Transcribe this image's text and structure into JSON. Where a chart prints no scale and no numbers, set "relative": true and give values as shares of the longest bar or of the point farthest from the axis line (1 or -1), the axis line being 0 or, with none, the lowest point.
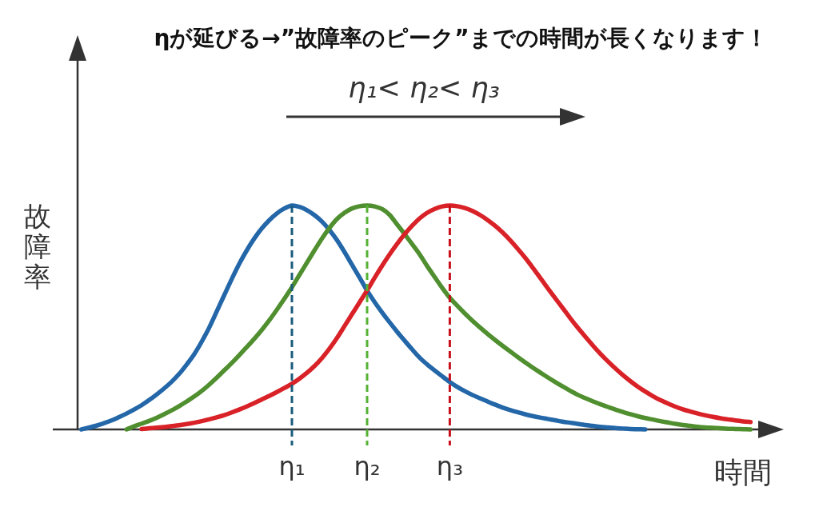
{
  "chart_data": {
    "type": "line",
    "title": "ηが延びる→”故障率のピーク”までの時間が長くなります！",
    "xlabel": "時間",
    "ylabel": "故障率",
    "relative": true,
    "categories": [
      null,
      null,
      null,
      null,
      null,
      null,
      null,
      null,
      null,
      null,
      null,
      null,
      null,
      null,
      null,
      null,
      null,
      null,
      null,
      null,
      null,
      null,
      null,
      null,
      null,
      null,
      null,
      null,
      "η₁",
      null,
      null,
      null,
      null,
      null,
      null,
      null,
      null,
      null,
      "η₂",
      null,
      null,
      null,
      null,
      null,
      null,
      null,
      null,
      null,
      null,
      "η₃",
      null,
      null,
      null,
      null,
      null,
      null,
      null,
      null,
      null,
      null,
      null,
      null,
      null,
      null,
      null,
      null,
      null,
      null,
      null,
      null,
      null,
      null,
      null,
      null,
      null,
      null,
      null,
      null,
      null,
      null,
      null,
      null,
      null,
      null,
      null,
      null,
      null,
      null,
      null,
      null
    ],
    "series": [
      {
        "color": "#2467a8",
        "values": [
          0,
          0.008,
          0.017,
          0.028,
          0.04,
          0.055,
          0.071,
          0.089,
          0.108,
          0.131,
          0.156,
          0.183,
          0.213,
          0.248,
          0.29,
          0.336,
          0.392,
          0.455,
          0.527,
          0.6,
          0.672,
          0.74,
          0.8,
          0.853,
          0.898,
          0.935,
          0.965,
          0.987,
          1,
          0.994,
          0.979,
          0.957,
          0.928,
          0.89,
          0.845,
          0.792,
          0.735,
          0.678,
          0.62,
          0.569,
          0.522,
          0.478,
          0.436,
          0.396,
          0.357,
          0.32,
          0.29,
          0.263,
          0.237,
          0.212,
          0.19,
          0.171,
          0.154,
          0.139,
          0.125,
          0.111,
          0.098,
          0.087,
          0.077,
          0.068,
          0.06,
          0.053,
          0.047,
          0.041,
          0.035,
          0.03,
          0.025,
          0.02,
          0.016,
          0.012,
          0.009,
          0.006,
          0.004,
          0.002,
          0.001,
          0,
          null,
          null,
          null,
          null,
          null,
          null,
          null,
          null,
          null,
          null,
          null,
          null,
          null,
          null
        ]
      },
      {
        "color": "#508f2f",
        "values": [
          null,
          null,
          null,
          null,
          null,
          null,
          0,
          0.014,
          0.026,
          0.038,
          0.052,
          0.068,
          0.085,
          0.104,
          0.125,
          0.147,
          0.172,
          0.2,
          0.231,
          0.264,
          0.297,
          0.332,
          0.368,
          0.405,
          0.445,
          0.488,
          0.535,
          0.584,
          0.635,
          0.69,
          0.745,
          0.8,
          0.853,
          0.9,
          0.94,
          0.968,
          0.987,
          0.997,
          1,
          0.996,
          0.984,
          0.958,
          0.915,
          0.872,
          0.827,
          0.781,
          0.729,
          0.68,
          0.632,
          0.588,
          0.552,
          0.518,
          0.486,
          0.456,
          0.427,
          0.4,
          0.374,
          0.349,
          0.324,
          0.3,
          0.277,
          0.255,
          0.233,
          0.212,
          0.192,
          0.173,
          0.155,
          0.14,
          0.126,
          0.113,
          0.101,
          0.089,
          0.078,
          0.068,
          0.059,
          0.051,
          0.044,
          0.037,
          0.031,
          0.025,
          0.02,
          0.016,
          0.012,
          0.009,
          0.007,
          0.005,
          0.003,
          0.002,
          0.001,
          0
        ]
      },
      {
        "color": "#d92228",
        "values": [
          null,
          null,
          null,
          null,
          null,
          null,
          null,
          null,
          0.002,
          0.005,
          0.008,
          0.011,
          0.015,
          0.019,
          0.024,
          0.03,
          0.037,
          0.045,
          0.054,
          0.064,
          0.076,
          0.089,
          0.103,
          0.118,
          0.134,
          0.15,
          0.167,
          0.185,
          0.204,
          0.227,
          0.253,
          0.283,
          0.319,
          0.361,
          0.409,
          0.462,
          0.515,
          0.568,
          0.621,
          0.677,
          0.731,
          0.782,
          0.829,
          0.872,
          0.91,
          0.943,
          0.968,
          0.985,
          0.996,
          1,
          0.997,
          0.989,
          0.976,
          0.958,
          0.936,
          0.91,
          0.88,
          0.846,
          0.808,
          0.768,
          0.724,
          0.678,
          0.632,
          0.587,
          0.543,
          0.498,
          0.455,
          0.415,
          0.376,
          0.339,
          0.305,
          0.273,
          0.243,
          0.216,
          0.191,
          0.169,
          0.149,
          0.131,
          0.116,
          0.102,
          0.09,
          0.08,
          0.071,
          0.063,
          0.056,
          0.05,
          0.045,
          0.04,
          0.036,
          0.033
        ]
      }
    ],
    "ref_lines": [
      {
        "axis": "x",
        "value": "η₁",
        "color": "#1a5c7c",
        "line_style": "dashed"
      },
      {
        "axis": "x",
        "value": "η₂",
        "color": "#55b233",
        "line_style": "dashed"
      },
      {
        "axis": "x",
        "value": "η₃",
        "color": "#c8101c",
        "line_style": "dashed"
      }
    ],
    "annotations": [
      "η₁< η₂< η₃"
    ]
  }
}
